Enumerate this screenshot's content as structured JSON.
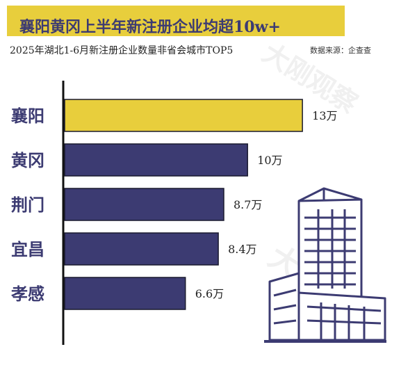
{
  "header": {
    "title": "襄阳黄冈上半年新注册企业均超10w+",
    "subtitle": "2025年湖北1-6月新注册企业数量非省会城市TOP5",
    "source": "数据来源：企查查",
    "watermark": "大刚观察"
  },
  "chart_data": {
    "type": "bar",
    "orientation": "horizontal",
    "title": "襄阳黄冈上半年新注册企业均超10w+",
    "subtitle": "2025年湖北1-6月新注册企业数量非省会城市TOP5",
    "categories": [
      "襄阳",
      "黄冈",
      "荆门",
      "宜昌",
      "孝感"
    ],
    "values": [
      13,
      10,
      8.7,
      8.4,
      6.6
    ],
    "value_labels": [
      "13万",
      "10万",
      "8.7万",
      "8.4万",
      "6.6万"
    ],
    "xlim": [
      0,
      14.4
    ],
    "colors": {
      "highlight": "#e8ce3c",
      "bar": "#3c3b72",
      "bar_stroke": "#1a1a2e"
    },
    "highlight_index": 0,
    "grid": false,
    "legend": "none"
  },
  "decoration": {
    "icon": "office-building-icon"
  }
}
